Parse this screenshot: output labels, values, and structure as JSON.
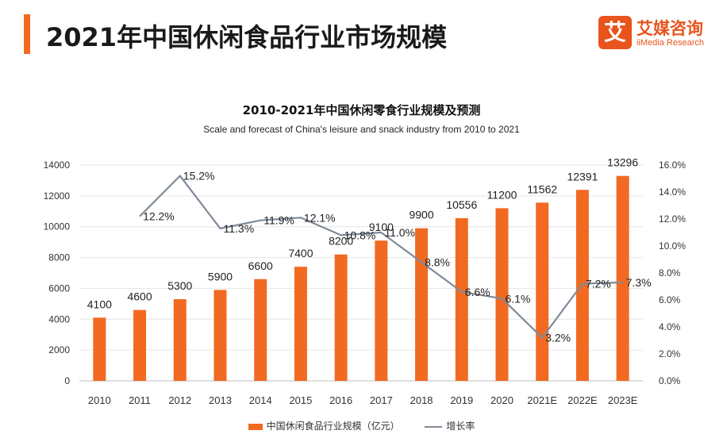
{
  "header": {
    "title": "2021年中国休闲食品行业市场规模",
    "brand_logo_char": "艾",
    "brand_name": "艾媒咨询",
    "brand_sub": "iiMedia Research"
  },
  "colors": {
    "accent": "#f26a21",
    "bar": "#f26a21",
    "line": "#7f8a99"
  },
  "chart_data": {
    "type": "bar",
    "title": "2010-2021年中国休闲零食行业规模及预测",
    "subtitle": "Scale and forecast of China's leisure and snack industry from 2010 to 2021",
    "categories": [
      "2010",
      "2011",
      "2012",
      "2013",
      "2014",
      "2015",
      "2016",
      "2017",
      "2018",
      "2019",
      "2020",
      "2021E",
      "2022E",
      "2023E"
    ],
    "series": [
      {
        "name": "中国休闲食品行业规模（亿元）",
        "type": "bar",
        "axis": "left",
        "values": [
          4100,
          4600,
          5300,
          5900,
          6600,
          7400,
          8200,
          9100,
          9900,
          10556,
          11200,
          11562,
          12391,
          13296
        ],
        "labels": [
          "4100",
          "4600",
          "5300",
          "5900",
          "6600",
          "7400",
          "8200",
          "9100",
          "9900",
          "10556",
          "11200",
          "11562",
          "12391",
          "13296"
        ]
      },
      {
        "name": "增长率",
        "type": "line",
        "axis": "right",
        "values": [
          null,
          12.2,
          15.2,
          11.3,
          11.9,
          12.1,
          10.8,
          11.0,
          8.8,
          6.6,
          6.1,
          3.2,
          7.2,
          7.3
        ],
        "labels": [
          "",
          "12.2%",
          "15.2%",
          "11.3%",
          "11.9%",
          "12.1%",
          "10.8%",
          "11.0%",
          "8.8%",
          "6.6%",
          "6.1%",
          "3.2%",
          "7.2%",
          "7.3%"
        ]
      }
    ],
    "y_left": {
      "min": 0,
      "max": 14000,
      "ticks": [
        "0",
        "2000",
        "4000",
        "6000",
        "8000",
        "10000",
        "12000",
        "14000"
      ]
    },
    "y_right": {
      "min": 0,
      "max": 16,
      "ticks": [
        "0.0%",
        "2.0%",
        "4.0%",
        "6.0%",
        "8.0%",
        "10.0%",
        "12.0%",
        "14.0%",
        "16.0%"
      ]
    },
    "grid": true,
    "legend_position": "bottom"
  }
}
